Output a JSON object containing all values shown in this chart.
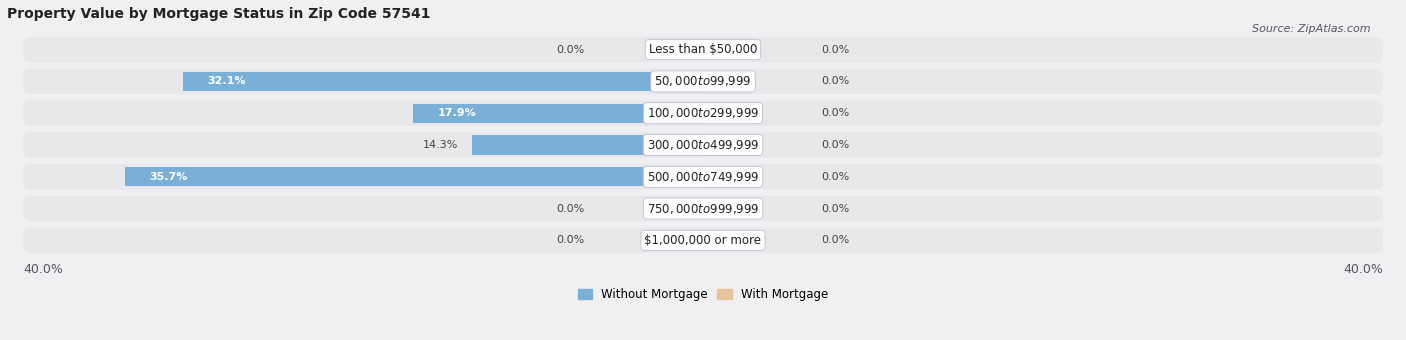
{
  "title": "Property Value by Mortgage Status in Zip Code 57541",
  "source": "Source: ZipAtlas.com",
  "categories": [
    "Less than $50,000",
    "$50,000 to $99,999",
    "$100,000 to $299,999",
    "$300,000 to $499,999",
    "$500,000 to $749,999",
    "$750,000 to $999,999",
    "$1,000,000 or more"
  ],
  "without_mortgage": [
    0.0,
    32.1,
    17.9,
    14.3,
    35.7,
    0.0,
    0.0
  ],
  "with_mortgage": [
    0.0,
    0.0,
    0.0,
    0.0,
    0.0,
    0.0,
    0.0
  ],
  "color_without": "#7ab0d8",
  "color_with": "#e8c49a",
  "xlim_abs": 40,
  "background_row_color": "#e8e8eb",
  "fig_bg": "#f0f0f2",
  "title_fontsize": 10,
  "source_fontsize": 8,
  "label_fontsize": 8.5,
  "val_label_fontsize": 8,
  "axis_end_label": "40.0%"
}
